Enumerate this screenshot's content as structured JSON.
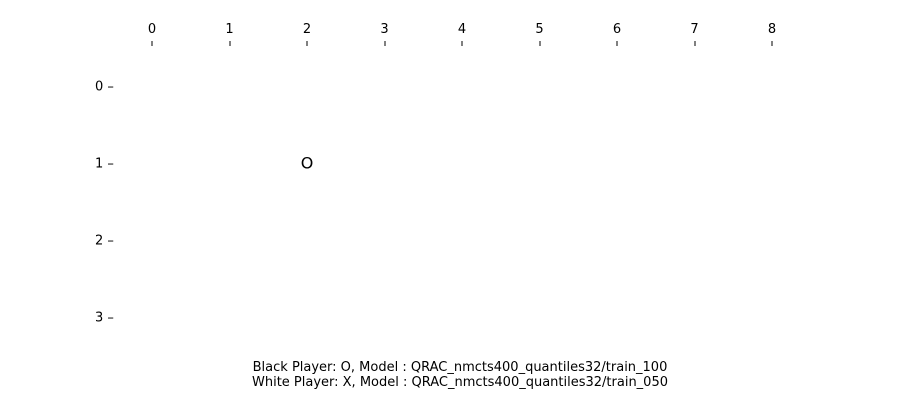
{
  "board": {
    "columns": [
      "0",
      "1",
      "2",
      "3",
      "4",
      "5",
      "6",
      "7",
      "8"
    ],
    "rows": [
      "0",
      "1",
      "2",
      "3"
    ],
    "row_tick_mark": "–",
    "pieces": [
      {
        "row": 1,
        "col": 2,
        "symbol": "O"
      }
    ]
  },
  "caption": {
    "black_player": "Black Player: O, Model : QRAC_nmcts400_quantiles32/train_100",
    "white_player": "White Player: X, Model : QRAC_nmcts400_quantiles32/train_050"
  }
}
